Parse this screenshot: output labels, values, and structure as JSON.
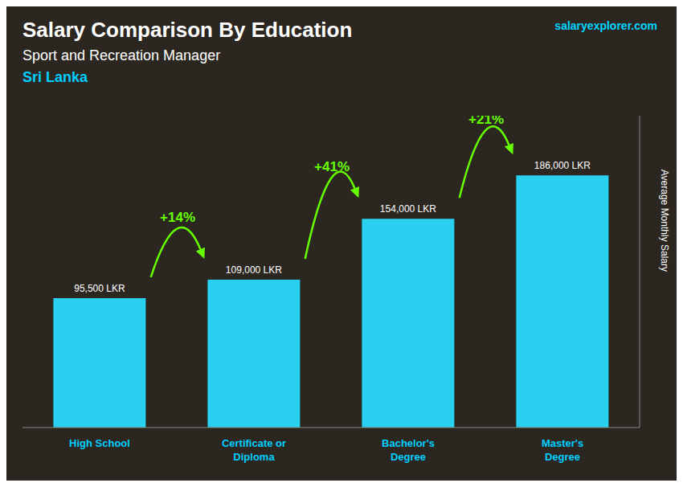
{
  "chart_data": {
    "type": "bar",
    "title": "Salary Comparison By Education",
    "subtitle": "Sport and Recreation Manager",
    "ylabel": "Average Monthly Salary",
    "categories": [
      "High School",
      "Certificate or\nDiploma",
      "Bachelor's\nDegree",
      "Master's\nDegree"
    ],
    "values": [
      95500,
      109000,
      154000,
      186000
    ],
    "value_labels": [
      "95,500 LKR",
      "109,000 LKR",
      "154,000 LKR",
      "186,000 LKR"
    ],
    "data_labels": true,
    "color": "#29d0f0",
    "ylim": [
      0,
      230000
    ],
    "grid": false,
    "tick_labels": "x",
    "annotations": [
      {
        "text": "Sri Lanka",
        "color": "#00cfff"
      },
      {
        "text": "salaryexplorer.com"
      },
      {
        "text": "+14%",
        "value": 14,
        "from": "High School",
        "to": "Certificate or\nDiploma",
        "color": "#66ff00"
      },
      {
        "text": "+41%",
        "value": 41,
        "from": "Certificate or\nDiploma",
        "to": "Bachelor's\nDegree",
        "color": "#66ff00"
      },
      {
        "text": "+21%",
        "value": 21,
        "from": "Bachelor's\nDegree",
        "to": "Master's\nDegree",
        "color": "#66ff00"
      }
    ]
  }
}
